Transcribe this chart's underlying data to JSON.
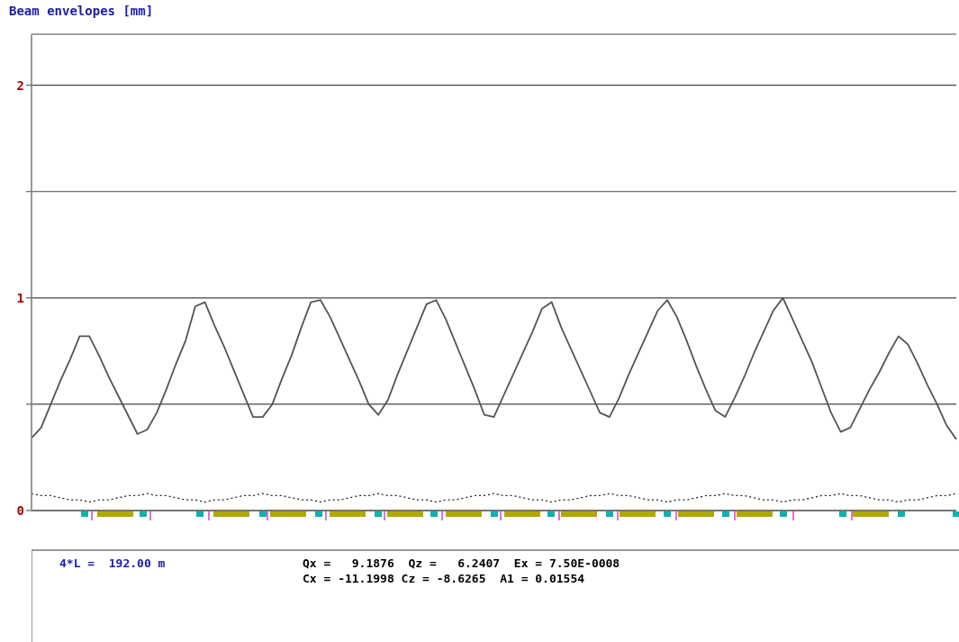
{
  "chart_data": {
    "type": "line",
    "title": "Beam envelopes [mm]",
    "categories": [
      null,
      null,
      null,
      null,
      null,
      null,
      null,
      null,
      null,
      null,
      null,
      null,
      null,
      null,
      null,
      null,
      null,
      null,
      null,
      null,
      null,
      null,
      null,
      null,
      null,
      null,
      null,
      null,
      null,
      null,
      null,
      null,
      null,
      null,
      null,
      null,
      null,
      null,
      null,
      null,
      null,
      null,
      null,
      null,
      null,
      null,
      null,
      null,
      null,
      null,
      null,
      null,
      null,
      null,
      null,
      null,
      null,
      null,
      null,
      null,
      null,
      null,
      null,
      null,
      null,
      null,
      null,
      null,
      null,
      null,
      null,
      null,
      null,
      null,
      null,
      null,
      null,
      null,
      null,
      null,
      null,
      null,
      null,
      null,
      null,
      null,
      null,
      null,
      null,
      null,
      null,
      null,
      null,
      null,
      null,
      null,
      null
    ],
    "ylim": [
      0,
      2.24
    ],
    "yticks": [
      0,
      {
        "value": 0.5,
        "label": null
      },
      1,
      {
        "value": 1.5,
        "label": null
      },
      2
    ],
    "grid": "y",
    "tick_labels": "y",
    "series": [
      {
        "color": "#555555",
        "line_style": "solid",
        "values": [
          0.34,
          0.39,
          0.5,
          0.61,
          0.71,
          0.82,
          0.82,
          0.73,
          0.63,
          0.54,
          0.45,
          0.36,
          0.38,
          0.46,
          0.57,
          0.69,
          0.8,
          0.96,
          0.98,
          0.87,
          0.77,
          0.66,
          0.55,
          0.44,
          0.44,
          0.5,
          0.62,
          0.73,
          0.86,
          0.98,
          0.99,
          0.91,
          0.81,
          0.71,
          0.61,
          0.5,
          0.45,
          0.52,
          0.64,
          0.75,
          0.86,
          0.97,
          0.99,
          0.9,
          0.79,
          0.68,
          0.57,
          0.45,
          0.44,
          0.54,
          0.64,
          0.74,
          0.84,
          0.95,
          0.98,
          0.86,
          0.76,
          0.66,
          0.56,
          0.46,
          0.44,
          0.53,
          0.64,
          0.74,
          0.84,
          0.94,
          0.99,
          0.91,
          0.8,
          0.68,
          0.57,
          0.47,
          0.44,
          0.53,
          0.63,
          0.74,
          0.84,
          0.94,
          1.0,
          0.9,
          0.8,
          0.7,
          0.58,
          0.46,
          0.37,
          0.39,
          0.48,
          0.57,
          0.65,
          0.74,
          0.82,
          0.78,
          0.69,
          0.59,
          0.5,
          0.4,
          0.335
        ]
      },
      {
        "color": "#222222",
        "line_style": "dotted",
        "values": [
          0.08,
          0.07,
          0.07,
          0.06,
          0.05,
          0.05,
          0.04,
          0.05,
          0.05,
          0.06,
          0.07,
          0.07,
          0.08,
          0.07,
          0.07,
          0.06,
          0.05,
          0.05,
          0.04,
          0.05,
          0.05,
          0.06,
          0.07,
          0.07,
          0.08,
          0.07,
          0.07,
          0.06,
          0.05,
          0.05,
          0.04,
          0.05,
          0.05,
          0.06,
          0.07,
          0.07,
          0.08,
          0.07,
          0.07,
          0.06,
          0.05,
          0.05,
          0.04,
          0.05,
          0.05,
          0.06,
          0.07,
          0.07,
          0.08,
          0.07,
          0.07,
          0.06,
          0.05,
          0.05,
          0.04,
          0.05,
          0.05,
          0.06,
          0.07,
          0.07,
          0.08,
          0.07,
          0.07,
          0.06,
          0.05,
          0.05,
          0.04,
          0.05,
          0.05,
          0.06,
          0.07,
          0.07,
          0.08,
          0.07,
          0.07,
          0.06,
          0.05,
          0.05,
          0.04,
          0.05,
          0.05,
          0.06,
          0.07,
          0.07,
          0.08,
          0.07,
          0.07,
          0.06,
          0.05,
          0.05,
          0.04,
          0.05,
          0.05,
          0.06,
          0.07,
          0.07,
          0.08
        ]
      }
    ],
    "annotations": [
      "4*L =  192.00 m",
      "Qx =   9.1876  Qz =   6.2407  Ex = 7.50E-0008",
      "Cx = -11.1998 Cz = -8.6265  A1 = 0.01554"
    ]
  }
}
